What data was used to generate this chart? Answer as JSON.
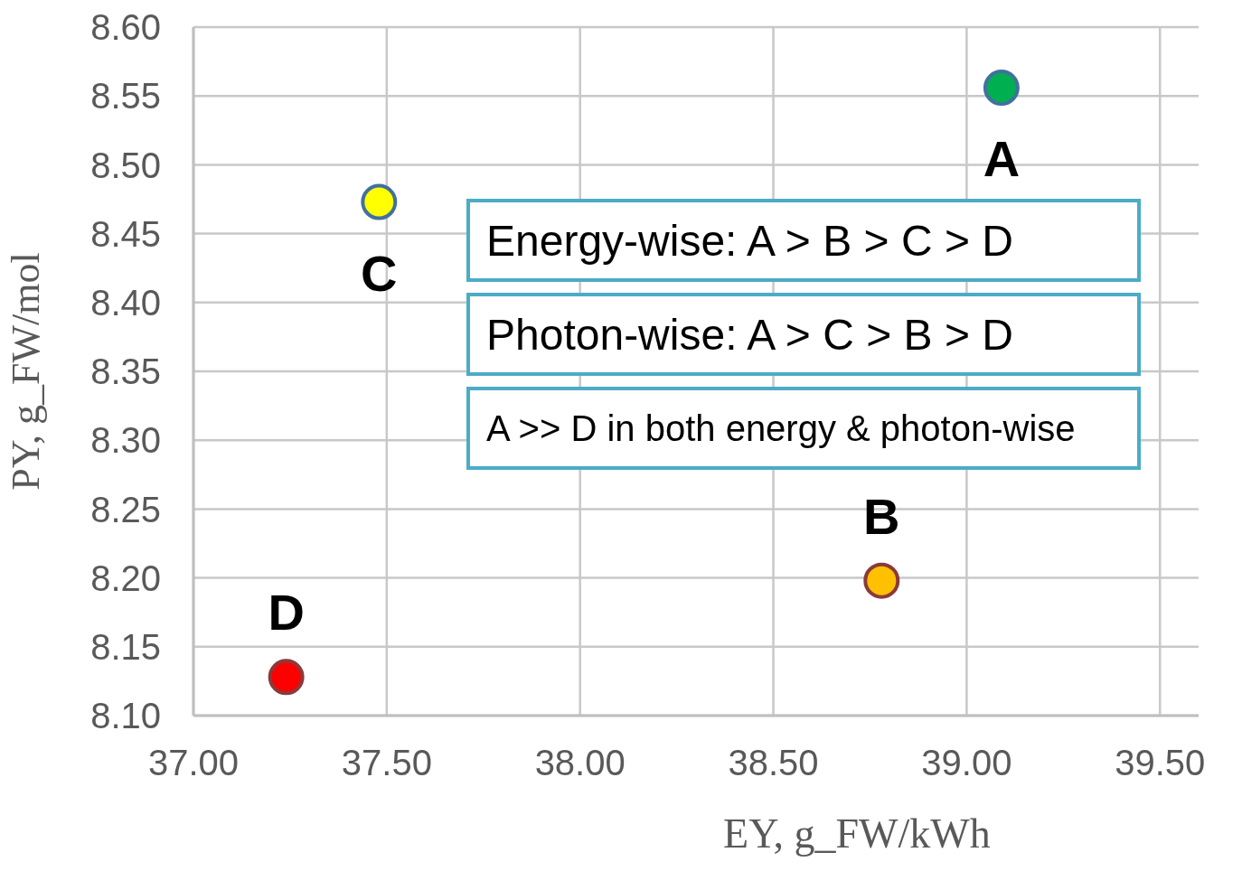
{
  "chart_data": {
    "type": "scatter",
    "xlabel": "EY, g_FW/kWh",
    "ylabel": "PY, g_FW/mol",
    "x": [
      39.09,
      38.78,
      37.48,
      37.24
    ],
    "values": [
      8.556,
      8.198,
      8.473,
      8.128
    ],
    "colors": [
      "#00b050",
      "#ffc000",
      "#ffff00",
      "#ff0000"
    ],
    "xlim": [
      37,
      39.6
    ],
    "xticks": [
      {
        "value": 37,
        "label": "37.00"
      },
      {
        "value": 37.5,
        "label": "37.50"
      },
      {
        "value": 38,
        "label": "38.00"
      },
      {
        "value": 38.5,
        "label": "38.50"
      },
      {
        "value": 39,
        "label": "39.00"
      },
      {
        "value": 39.5,
        "label": "39.50"
      }
    ],
    "ylim": [
      8.1,
      8.6
    ],
    "yticks": [
      {
        "value": 8.1,
        "label": "8.10"
      },
      {
        "value": 8.15,
        "label": "8.15"
      },
      {
        "value": 8.2,
        "label": "8.20"
      },
      {
        "value": 8.25,
        "label": "8.25"
      },
      {
        "value": 8.3,
        "label": "8.30"
      },
      {
        "value": 8.35,
        "label": "8.35"
      },
      {
        "value": 8.4,
        "label": "8.40"
      },
      {
        "value": 8.45,
        "label": "8.45"
      },
      {
        "value": 8.5,
        "label": "8.50"
      },
      {
        "value": 8.55,
        "label": "8.55"
      },
      {
        "value": 8.6,
        "label": "8.60"
      }
    ],
    "grid": true,
    "marker": "circle",
    "annotations": [
      {
        "text": "A",
        "x": 39.09,
        "y": 8.556
      },
      {
        "text": "B",
        "x": 38.78,
        "y": 8.198
      },
      {
        "text": "C",
        "x": 37.48,
        "y": 8.473
      },
      {
        "text": "D",
        "x": 37.24,
        "y": 8.128
      },
      "Energy-wise:  A > B > C > D",
      "Photon-wise:  A > C > B > D",
      "A >> D in both energy & photon-wise"
    ]
  }
}
